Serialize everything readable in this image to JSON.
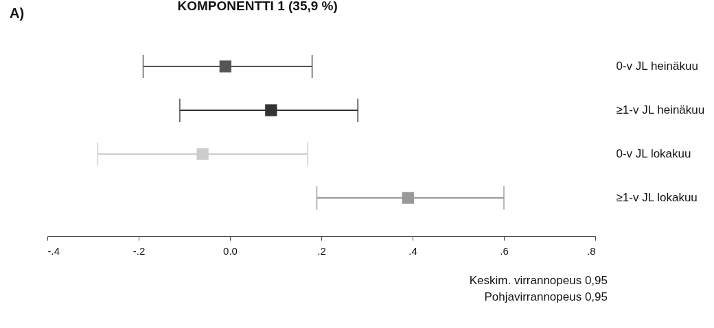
{
  "chart_data": {
    "type": "scatter",
    "orientation": "horizontal",
    "title": "KOMPONENTTI 1 (35,9 %)",
    "categories": [
      "0-v JL heinäkuu",
      "≥1-v JL heinäkuu",
      "0-v JL lokakuu",
      "≥1-v JL lokakuu"
    ],
    "values": [
      -0.01,
      0.09,
      -0.06,
      0.39
    ],
    "errors": [
      [
        -0.19,
        0.18
      ],
      [
        -0.11,
        0.28
      ],
      [
        -0.29,
        0.17
      ],
      [
        0.19,
        0.6
      ]
    ],
    "colors": [
      "#555555",
      "#333333",
      "#cccccc",
      "#999999"
    ],
    "marker": "square",
    "grid": false,
    "xlim": [
      -0.4,
      0.8
    ],
    "xticks": [
      {
        "value": -0.4,
        "label": "-.4"
      },
      {
        "value": -0.2,
        "label": "-.2"
      },
      {
        "value": 0,
        "label": "0.0"
      },
      {
        "value": 0.2,
        "label": ".2"
      },
      {
        "value": 0.4,
        "label": ".4"
      },
      {
        "value": 0.6,
        "label": ".6"
      },
      {
        "value": 0.8,
        "label": ".8"
      }
    ],
    "annotations": [
      "A)",
      "Keskim. virrannopeus 0,95",
      "Pohjavirrannopeus 0,95"
    ]
  }
}
